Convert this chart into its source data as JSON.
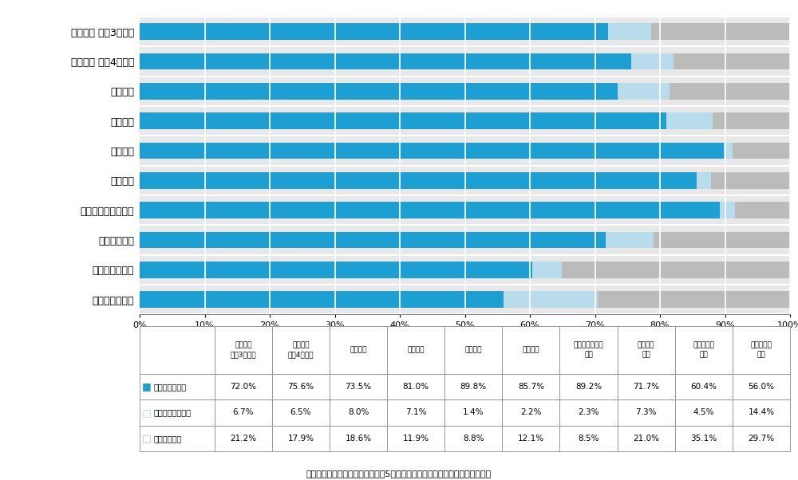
{
  "categories": [
    "《全体》 令和3年度間",
    "《全体》 令和4年度間",
    "工業関係",
    "農業関係",
    "医療関係",
    "衛生関係",
    "教育・社会福祉関係",
    "商業実務関係",
    "服飾・家政関係",
    "文化・教養関係"
  ],
  "related_employment": [
    72.0,
    75.6,
    73.5,
    81.0,
    89.8,
    85.7,
    89.2,
    71.7,
    60.4,
    56.0
  ],
  "unrelated_employment": [
    6.7,
    6.5,
    8.0,
    7.1,
    1.4,
    2.2,
    2.3,
    7.3,
    4.5,
    14.4
  ],
  "other": [
    21.2,
    17.9,
    18.6,
    11.9,
    8.8,
    12.1,
    8.5,
    21.0,
    35.1,
    29.7
  ],
  "color_related": "#1E9FD4",
  "color_unrelated": "#B8DCEC",
  "color_other": "#BBBBBB",
  "table_col_headers_line1": [
    "《全体》",
    "《全体》",
    "工業関係",
    "農業関係",
    "医療関係",
    "衛生関係",
    "教育・社会福祉",
    "商業実務",
    "服飾・家政",
    "文化・教養"
  ],
  "table_col_headers_line2": [
    "令和3年度間",
    "令和4年度間",
    "",
    "",
    "",
    "",
    "関係",
    "関係",
    "関係",
    "関係"
  ],
  "legend_labels": [
    "関係分野に就職",
    "非関係分野に就職",
    "進学・その他"
  ],
  "footer_text": "（文部科学省学校基本調査　令和5年度専修学校学科別卒業者数データより）",
  "bar_height": 0.55,
  "bg_color": "#E8E8E8",
  "chart_bg": "#E8E8E8"
}
